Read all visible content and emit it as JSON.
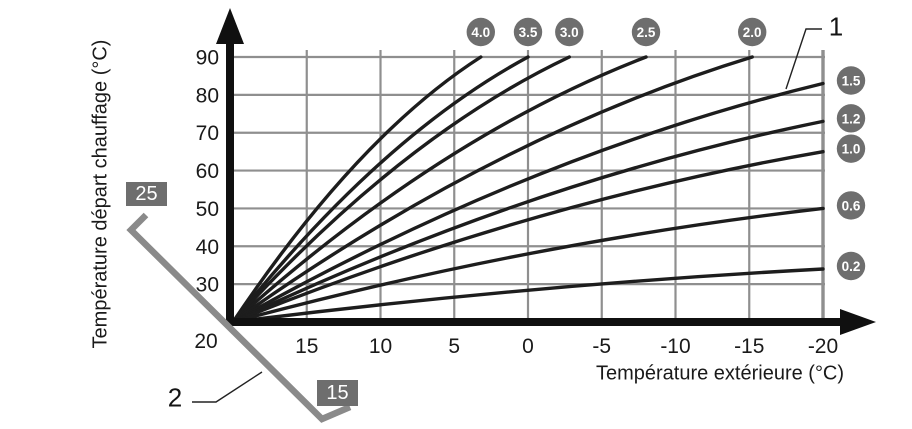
{
  "figure": {
    "callout_1_label": "1",
    "callout_2_label": "2",
    "room_scale_max_label": "25",
    "room_scale_min_label": "15"
  },
  "chart_data": {
    "type": "line",
    "xlabel": "Température extérieure (°C)",
    "ylabel": "Température départ chauffage (°C)",
    "x_ticks": [
      20,
      15,
      10,
      5,
      0,
      -5,
      -10,
      -15,
      -20
    ],
    "y_ticks": [
      30,
      40,
      50,
      60,
      70,
      80,
      90
    ],
    "x_range": [
      20,
      -20
    ],
    "y_range": [
      20,
      90
    ],
    "x_axis_reversed": true,
    "grid": true,
    "origin": {
      "ext": 20,
      "flow": 20
    },
    "series": [
      {
        "name": "4.0",
        "badge_position": "top",
        "start": {
          "ext": 20,
          "flow": 20
        },
        "end": {
          "ext": 3.2,
          "flow": 90
        }
      },
      {
        "name": "3.5",
        "badge_position": "top",
        "start": {
          "ext": 20,
          "flow": 20
        },
        "end": {
          "ext": 0,
          "flow": 90
        }
      },
      {
        "name": "3.0",
        "badge_position": "top",
        "start": {
          "ext": 20,
          "flow": 20
        },
        "end": {
          "ext": -2.8,
          "flow": 90
        }
      },
      {
        "name": "2.5",
        "badge_position": "top",
        "start": {
          "ext": 20,
          "flow": 20
        },
        "end": {
          "ext": -8,
          "flow": 90
        }
      },
      {
        "name": "2.0",
        "badge_position": "top",
        "start": {
          "ext": 20,
          "flow": 20
        },
        "end": {
          "ext": -15.2,
          "flow": 90
        }
      },
      {
        "name": "1.5",
        "badge_position": "right",
        "start": {
          "ext": 20,
          "flow": 20
        },
        "end": {
          "ext": -20,
          "flow": 83
        }
      },
      {
        "name": "1.2",
        "badge_position": "right",
        "start": {
          "ext": 20,
          "flow": 20
        },
        "end": {
          "ext": -20,
          "flow": 73
        }
      },
      {
        "name": "1.0",
        "badge_position": "right",
        "start": {
          "ext": 20,
          "flow": 20
        },
        "end": {
          "ext": -20,
          "flow": 65
        }
      },
      {
        "name": "0.6",
        "badge_position": "right",
        "start": {
          "ext": 20,
          "flow": 20
        },
        "end": {
          "ext": -20,
          "flow": 50
        }
      },
      {
        "name": "0.2",
        "badge_position": "right",
        "start": {
          "ext": 20,
          "flow": 20
        },
        "end": {
          "ext": -20,
          "flow": 34
        }
      }
    ],
    "room_temperature_scale": {
      "max_label": "25",
      "min_label": "15"
    }
  },
  "colors": {
    "curve": "#1d1d1d",
    "axis": "#101010",
    "grid": "#8f8f8f",
    "badge_fill": "#6e6e6e",
    "badge_text": "#ffffff",
    "scale_line": "#8a8a8a",
    "callout_line": "#222222",
    "text": "#1a1a1a",
    "background": "#ffffff"
  }
}
